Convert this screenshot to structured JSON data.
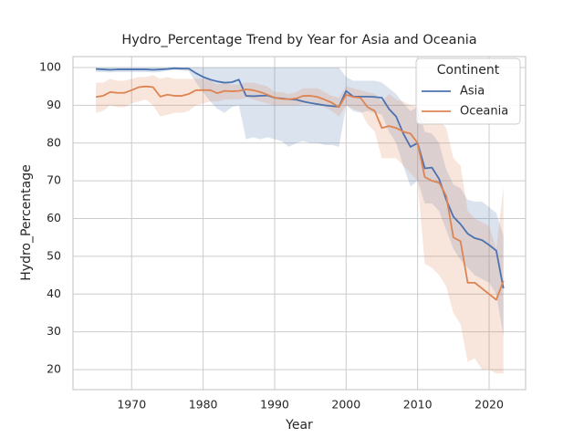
{
  "chart_data": {
    "type": "line",
    "title": "Hydro_Percentage Trend by Year for Asia and Oceania",
    "x_label": "Year",
    "y_label": "Hydro_Percentage",
    "x": [
      1965,
      1966,
      1967,
      1968,
      1969,
      1970,
      1971,
      1972,
      1973,
      1974,
      1975,
      1976,
      1977,
      1978,
      1979,
      1980,
      1981,
      1982,
      1983,
      1984,
      1985,
      1986,
      1987,
      1988,
      1989,
      1990,
      1991,
      1992,
      1993,
      1994,
      1995,
      1996,
      1997,
      1998,
      1999,
      2000,
      2001,
      2002,
      2003,
      2004,
      2005,
      2006,
      2007,
      2008,
      2009,
      2010,
      2011,
      2012,
      2013,
      2014,
      2015,
      2016,
      2017,
      2018,
      2019,
      2020,
      2021,
      2022
    ],
    "series": [
      {
        "name": "Asia",
        "color": "#4c72b0",
        "values": [
          99.6,
          99.5,
          99.4,
          99.5,
          99.5,
          99.5,
          99.5,
          99.5,
          99.4,
          99.5,
          99.6,
          99.8,
          99.7,
          99.7,
          98.5,
          97.5,
          96.8,
          96.3,
          96.0,
          96.1,
          96.8,
          92.5,
          92.4,
          92.5,
          92.6,
          92.0,
          91.8,
          91.6,
          91.5,
          91.0,
          90.6,
          90.3,
          90.0,
          89.8,
          89.6,
          93.8,
          92.3,
          92.3,
          92.3,
          92.2,
          92.0,
          89.0,
          87.0,
          82.5,
          79.0,
          80.0,
          73.3,
          73.5,
          70.5,
          65.0,
          60.5,
          58.5,
          56.0,
          54.8,
          54.3,
          53.0,
          51.5,
          41.5
        ],
        "lower": [
          98.8,
          98.8,
          98.7,
          98.8,
          98.8,
          98.8,
          98.8,
          98.8,
          98.7,
          98.8,
          99.2,
          99.3,
          99.2,
          99.0,
          96.0,
          93.5,
          91.0,
          89.0,
          88.0,
          89.5,
          90.0,
          81.0,
          81.5,
          81.0,
          81.5,
          81.0,
          80.5,
          79.0,
          80.0,
          80.5,
          80.0,
          80.0,
          79.5,
          79.5,
          79.0,
          90.0,
          88.5,
          88.0,
          88.5,
          88.0,
          87.5,
          83.0,
          80.0,
          74.0,
          68.5,
          70.0,
          64.0,
          64.0,
          62.0,
          57.0,
          52.0,
          49.0,
          47.0,
          45.0,
          44.0,
          43.0,
          40.0,
          29.0
        ],
        "upper": [
          100,
          100,
          100,
          100,
          100,
          100,
          100,
          100,
          100,
          100,
          100,
          100,
          100,
          100,
          100,
          100,
          100,
          100,
          100,
          100,
          100,
          100,
          100,
          100,
          100,
          100,
          100,
          100,
          100,
          100,
          100,
          100,
          100,
          100,
          100,
          97.5,
          96.5,
          96.5,
          96.5,
          96.5,
          96,
          94.5,
          93,
          90.5,
          88.5,
          89.5,
          83,
          82.5,
          80,
          73,
          69,
          68,
          65,
          64.5,
          64.5,
          63,
          61.5,
          55.5
        ]
      },
      {
        "name": "Oceania",
        "color": "#dd8452",
        "values": [
          92.2,
          92.5,
          93.5,
          93.3,
          93.3,
          94.0,
          94.8,
          95.0,
          94.8,
          92.3,
          92.8,
          92.5,
          92.5,
          93.0,
          94.0,
          94.0,
          94.0,
          93.2,
          93.8,
          93.7,
          93.8,
          94.2,
          94.0,
          93.5,
          92.8,
          92.0,
          91.7,
          91.6,
          91.8,
          92.5,
          92.5,
          92.2,
          91.5,
          90.7,
          89.5,
          92.8,
          92.2,
          92.0,
          89.5,
          88.5,
          84.0,
          84.5,
          84.0,
          83.0,
          82.5,
          80.0,
          71.0,
          70.0,
          69.5,
          66.0,
          55.0,
          54.0,
          43.0,
          43.0,
          41.5,
          40.0,
          38.5,
          43.5
        ],
        "lower": [
          88.0,
          88.5,
          90.0,
          89.5,
          89.5,
          90.5,
          91.0,
          91.5,
          90.0,
          87.0,
          87.5,
          88.0,
          88.0,
          88.5,
          90.0,
          90.5,
          91.0,
          91.0,
          91.5,
          91.5,
          91.5,
          92.0,
          91.5,
          91.0,
          90.5,
          90.0,
          90.0,
          90.0,
          90.0,
          90.5,
          90.5,
          90.0,
          89.5,
          88.5,
          87.0,
          90.0,
          89.0,
          88.5,
          85.0,
          83.0,
          76.0,
          76.0,
          76.0,
          74.0,
          72.0,
          70.0,
          48.0,
          47.0,
          45.0,
          42.0,
          35.0,
          32.0,
          22.0,
          23.0,
          20.0,
          20.0,
          19.0,
          19.0
        ],
        "upper": [
          96.0,
          96.0,
          97.0,
          96.5,
          96.5,
          97.0,
          97.5,
          97.5,
          98.0,
          97.0,
          97.5,
          97.0,
          97.0,
          97.0,
          97.0,
          97.0,
          96.5,
          95.5,
          96.0,
          95.5,
          95.5,
          96.0,
          96.0,
          95.5,
          95.0,
          93.5,
          93.5,
          93.0,
          93.5,
          94.5,
          94.5,
          94.5,
          93.5,
          92.5,
          92.0,
          95.0,
          94.5,
          94.0,
          93.5,
          93.0,
          91.0,
          93.0,
          91.5,
          91.0,
          90.0,
          89.5,
          87.0,
          86.0,
          86.0,
          84.0,
          76.0,
          74.0,
          62.0,
          60.0,
          59.0,
          58.0,
          52.0,
          68.5
        ]
      }
    ],
    "xlim": [
      1961.8,
      2025.1
    ],
    "ylim": [
      14.7,
      102.9
    ],
    "xticks": [
      1970,
      1980,
      1990,
      2000,
      2010,
      2020
    ],
    "yticks": [
      20,
      30,
      40,
      50,
      60,
      70,
      80,
      90,
      100
    ],
    "grid": true,
    "legend_title": "Continent",
    "legend": "upper right"
  }
}
